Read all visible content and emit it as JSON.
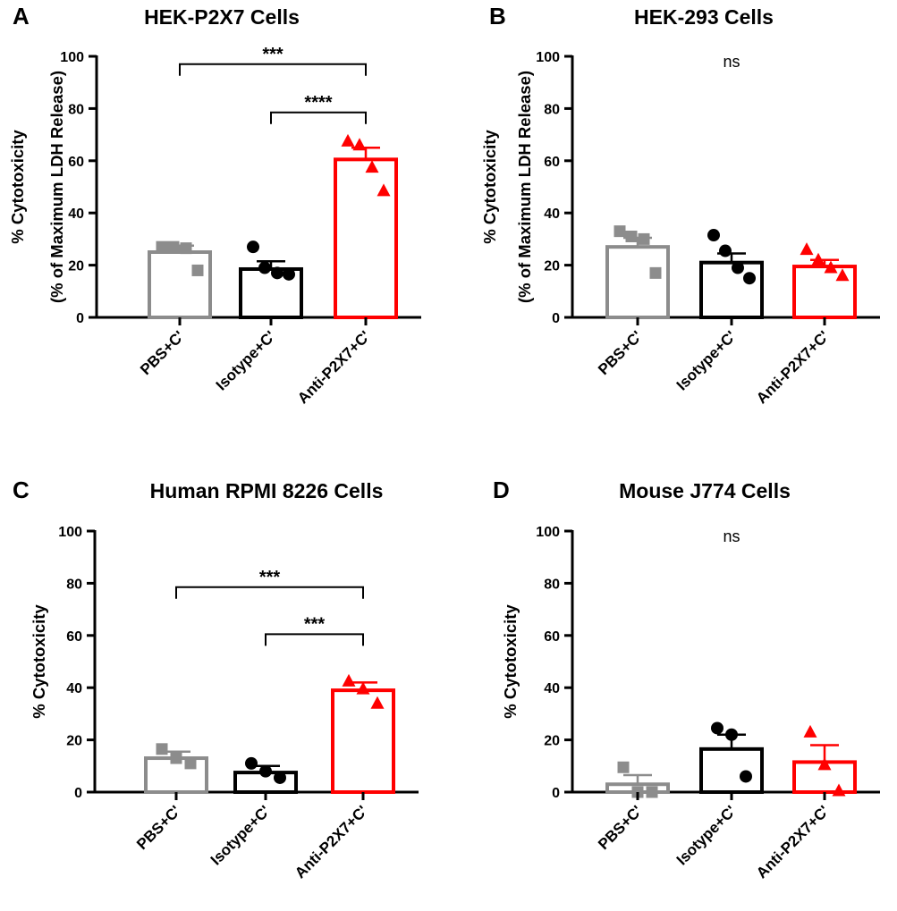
{
  "figure": {
    "colors": {
      "pbs": "#8c8c8c",
      "isotype": "#000000",
      "anti": "#ff0000",
      "axis": "#000000"
    },
    "categories": [
      "PBS+C'",
      "Isotype+C'",
      "Anti-P2X7+C'"
    ],
    "marker_shapes": [
      "square",
      "circle",
      "triangle"
    ],
    "y_ticks": [
      0,
      20,
      40,
      60,
      80,
      100
    ]
  },
  "chart_data": [
    {
      "panel_letter": "A",
      "type": "bar",
      "title": "HEK-P2X7 Cells",
      "ylabel_lines": [
        "% Cytotoxicity",
        "(% of Maximum LDH Release)"
      ],
      "ylim": [
        0,
        100
      ],
      "categories": [
        "PBS+C'",
        "Isotype+C'",
        "Anti-P2X7+C'"
      ],
      "values": [
        25,
        18.5,
        60.5
      ],
      "sem": [
        2.5,
        3,
        4.5
      ],
      "points": [
        [
          27,
          27,
          26.5,
          18
        ],
        [
          27,
          19,
          17,
          16.5
        ],
        [
          67.5,
          66,
          57.5,
          48.5
        ]
      ],
      "significance": [
        {
          "from": 0,
          "to": 2,
          "label": "***",
          "y": 97
        },
        {
          "from": 1,
          "to": 2,
          "label": "****",
          "y": 78.5
        }
      ]
    },
    {
      "panel_letter": "B",
      "type": "bar",
      "title": "HEK-293 Cells",
      "ylabel_lines": [
        "% Cytotoxicity",
        "(% of Maximum LDH Release)"
      ],
      "ylim": [
        0,
        100
      ],
      "categories": [
        "PBS+C'",
        "Isotype+C'",
        "Anti-P2X7+C'"
      ],
      "values": [
        27,
        21,
        19.5
      ],
      "sem": [
        3.5,
        3.5,
        2.5
      ],
      "points": [
        [
          33,
          31,
          30,
          17
        ],
        [
          31.5,
          25.5,
          19,
          15
        ],
        [
          26,
          22,
          19,
          16
        ]
      ],
      "annotation": "ns"
    },
    {
      "panel_letter": "C",
      "type": "bar",
      "title": "Human RPMI 8226 Cells",
      "ylabel_lines": [
        "% Cytotoxicity"
      ],
      "ylim": [
        0,
        100
      ],
      "categories": [
        "PBS+C'",
        "Isotype+C'",
        "Anti-P2X7+C'"
      ],
      "values": [
        13,
        7.5,
        39
      ],
      "sem": [
        2.5,
        2.5,
        3
      ],
      "points": [
        [
          16.5,
          13,
          11
        ],
        [
          11,
          8,
          5.5
        ],
        [
          42.5,
          39.5,
          34
        ]
      ],
      "significance": [
        {
          "from": 0,
          "to": 2,
          "label": "***",
          "y": 78.5
        },
        {
          "from": 1,
          "to": 2,
          "label": "***",
          "y": 60.5
        }
      ]
    },
    {
      "panel_letter": "D",
      "type": "bar",
      "title": "Mouse J774 Cells",
      "ylabel_lines": [
        "% Cytotoxicity"
      ],
      "ylim": [
        0,
        100
      ],
      "categories": [
        "PBS+C'",
        "Isotype+C'",
        "Anti-P2X7+C'"
      ],
      "values": [
        3,
        16.5,
        11.5
      ],
      "sem": [
        3.5,
        5.5,
        6.5
      ],
      "points": [
        [
          9.5,
          0,
          0
        ],
        [
          24.5,
          22,
          6
        ],
        [
          23,
          10.5,
          0.5
        ]
      ],
      "annotation": "ns"
    }
  ]
}
